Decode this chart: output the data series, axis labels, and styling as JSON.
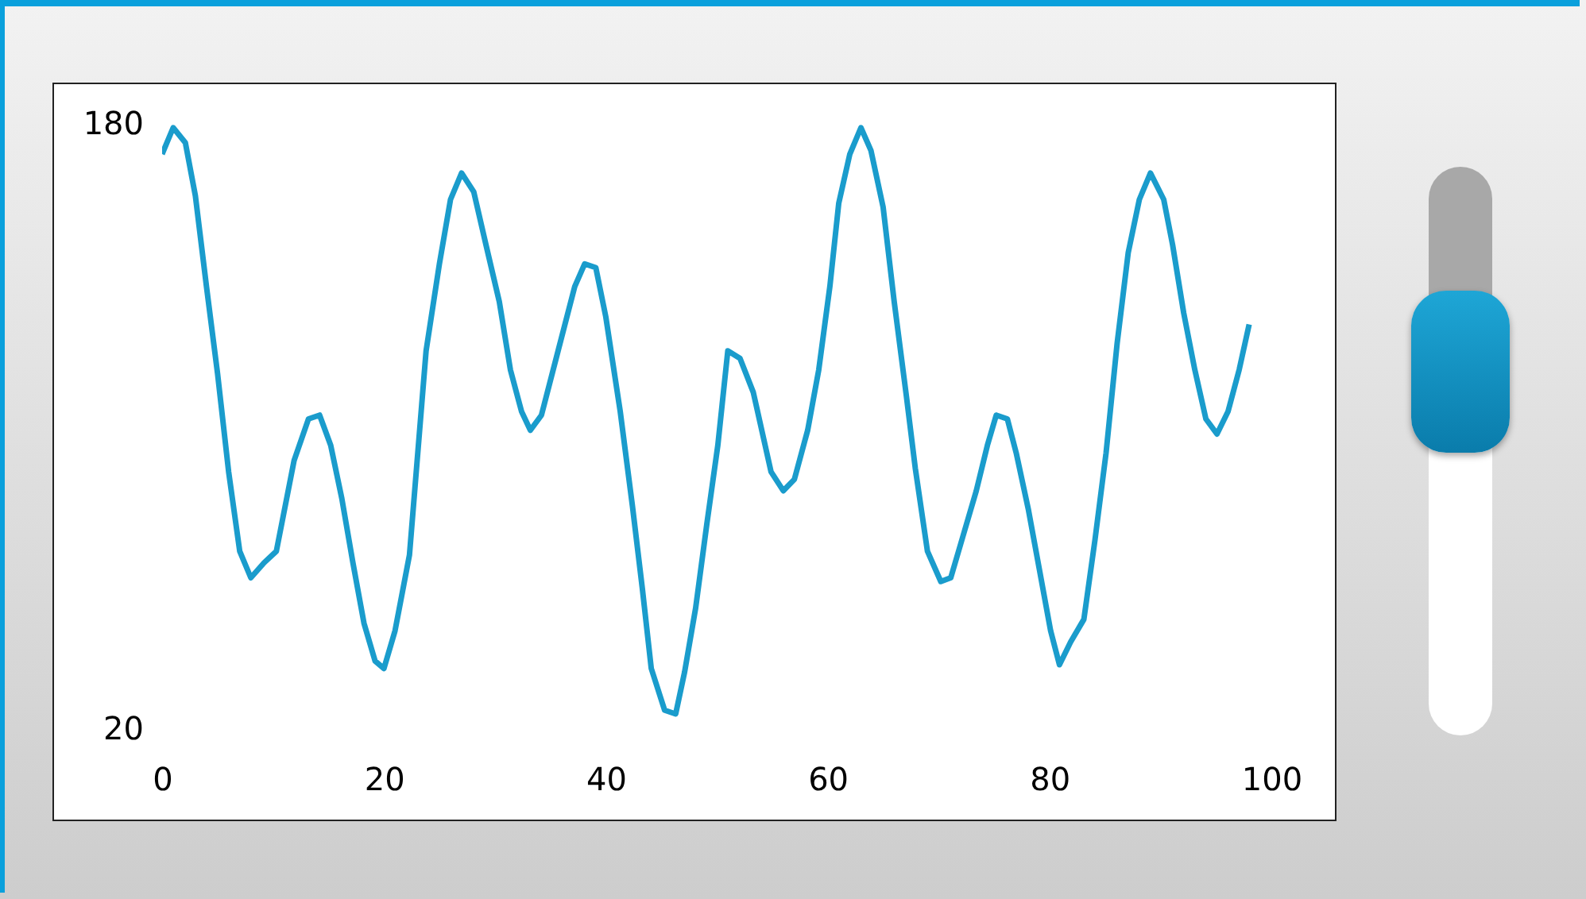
{
  "chart_data": {
    "type": "line",
    "x": [
      0,
      1,
      2.1,
      3,
      4,
      5,
      6,
      7,
      8,
      9.2,
      10.3,
      11.9,
      13.2,
      14.2,
      15.2,
      16.2,
      17.2,
      18.2,
      19.2,
      20,
      21,
      22.3,
      23.8,
      25,
      26,
      27,
      28.1,
      29.2,
      30.4,
      31.4,
      32.4,
      33.2,
      34.2,
      35.7,
      37.2,
      38.1,
      39.1,
      40,
      41.3,
      42.4,
      43.3,
      44.1,
      45.3,
      46.3,
      47.1,
      48.1,
      49.1,
      50.1,
      51,
      52.1,
      53.3,
      54.9,
      56,
      57,
      58.2,
      59.2,
      60.2,
      61,
      62,
      63,
      63.9,
      65,
      66,
      67.1,
      67.9,
      69,
      70.2,
      71.1,
      72.2,
      73.4,
      74.4,
      75.2,
      76.2,
      77,
      78.1,
      79.1,
      80.1,
      80.9,
      81.9,
      83.1,
      84.1,
      85.1,
      86.1,
      87.1,
      88.1,
      89.1,
      90.3,
      91.1,
      92.1,
      93.1,
      94.1,
      95.1,
      96.1,
      97.1,
      98
    ],
    "series": [
      {
        "color": "#1a9ccc",
        "values": [
          172,
          179,
          175,
          161,
          137,
          114,
          88,
          67,
          60,
          64,
          67,
          91,
          102,
          103,
          95,
          81,
          64,
          48,
          38,
          36,
          46,
          66,
          120,
          143,
          160,
          167,
          162,
          148,
          133,
          115,
          104,
          99,
          103,
          120,
          137,
          143,
          142,
          129,
          104,
          79,
          57,
          36,
          25,
          24,
          35,
          52,
          74,
          95,
          120,
          118,
          109,
          88,
          83,
          86,
          99,
          115,
          137,
          159,
          172,
          179,
          173,
          158,
          133,
          108,
          89,
          67,
          59,
          60,
          71,
          83,
          95,
          103,
          102,
          93,
          78,
          62,
          46,
          37,
          43,
          49,
          70,
          93,
          122,
          146,
          160,
          167,
          160,
          148,
          130,
          115,
          102,
          98,
          104,
          115,
          127
        ]
      }
    ],
    "xlim": [
      0,
      100
    ],
    "xticks": [
      0,
      20,
      40,
      60,
      80,
      100
    ],
    "ylim": [
      20,
      180
    ],
    "yticks": [
      20,
      180
    ],
    "grid": false,
    "line_style": "solid",
    "marker": "none"
  }
}
